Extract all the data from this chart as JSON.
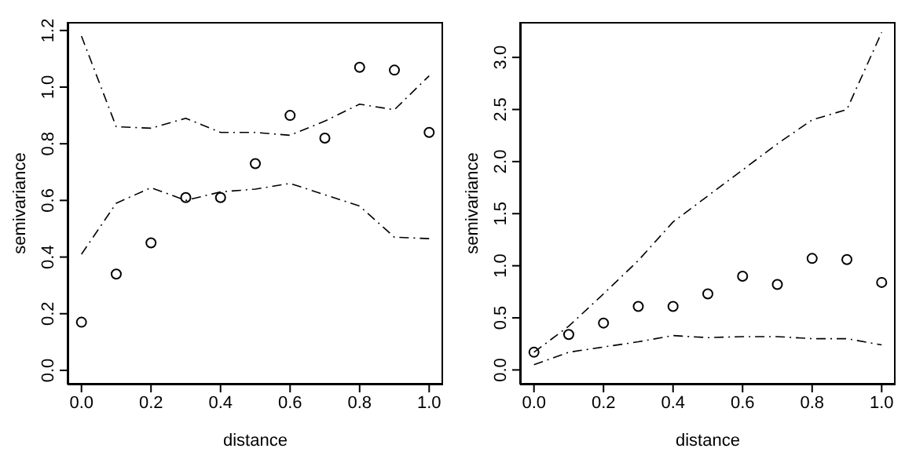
{
  "chart_data": [
    {
      "type": "scatter",
      "xlabel": "distance",
      "ylabel": "semivariance",
      "x": [
        0,
        0.1,
        0.2,
        0.3,
        0.4,
        0.5,
        0.6,
        0.7,
        0.8,
        0.9,
        1.0
      ],
      "xlim": [
        -0.04,
        1.04
      ],
      "xticks": [
        {
          "value": 0,
          "label": "0.0"
        },
        {
          "value": 0.2,
          "label": "0.2"
        },
        {
          "value": 0.4,
          "label": "0.4"
        },
        {
          "value": 0.6,
          "label": "0.6"
        },
        {
          "value": 0.8,
          "label": "0.8"
        },
        {
          "value": 1,
          "label": "1.0"
        }
      ],
      "ylim": [
        -0.05,
        1.23
      ],
      "yticks": [
        {
          "value": 0,
          "label": "0.0"
        },
        {
          "value": 0.2,
          "label": "0.2"
        },
        {
          "value": 0.4,
          "label": "0.4"
        },
        {
          "value": 0.6,
          "label": "0.6"
        },
        {
          "value": 0.8,
          "label": "0.8"
        },
        {
          "value": 1,
          "label": "1.0"
        },
        {
          "value": 1.2,
          "label": "1.2"
        }
      ],
      "grid": false,
      "series": [
        {
          "type": "scatter",
          "marker": "circle",
          "color": "#000000",
          "values": [
            0.17,
            0.34,
            0.45,
            0.61,
            0.61,
            0.73,
            0.9,
            0.82,
            1.07,
            1.06,
            0.84
          ]
        },
        {
          "type": "line",
          "line_style": "dashed",
          "marker": "none",
          "color": "#000000",
          "values": [
            1.18,
            0.86,
            0.855,
            0.89,
            0.84,
            0.84,
            0.83,
            0.88,
            0.94,
            0.92,
            1.04
          ]
        },
        {
          "type": "line",
          "line_style": "dashed",
          "marker": "none",
          "color": "#000000",
          "values": [
            0.41,
            0.59,
            0.645,
            0.6,
            0.63,
            0.64,
            0.66,
            0.62,
            0.58,
            0.47,
            0.465
          ]
        }
      ]
    },
    {
      "type": "scatter",
      "xlabel": "distance",
      "ylabel": "semivariance",
      "x": [
        0,
        0.1,
        0.2,
        0.3,
        0.4,
        0.5,
        0.6,
        0.7,
        0.8,
        0.9,
        1.0
      ],
      "xlim": [
        -0.04,
        1.04
      ],
      "xticks": [
        {
          "value": 0,
          "label": "0.0"
        },
        {
          "value": 0.2,
          "label": "0.2"
        },
        {
          "value": 0.4,
          "label": "0.4"
        },
        {
          "value": 0.6,
          "label": "0.6"
        },
        {
          "value": 0.8,
          "label": "0.8"
        },
        {
          "value": 1,
          "label": "1.0"
        }
      ],
      "ylim": [
        -0.14,
        3.34
      ],
      "yticks": [
        {
          "value": 0,
          "label": "0.0"
        },
        {
          "value": 0.5,
          "label": "0.5"
        },
        {
          "value": 1,
          "label": "1.0"
        },
        {
          "value": 1.5,
          "label": "1.5"
        },
        {
          "value": 2,
          "label": "2.0"
        },
        {
          "value": 2.5,
          "label": "2.5"
        },
        {
          "value": 3,
          "label": "3.0"
        }
      ],
      "grid": false,
      "series": [
        {
          "type": "scatter",
          "marker": "circle",
          "color": "#000000",
          "values": [
            0.17,
            0.34,
            0.45,
            0.61,
            0.61,
            0.73,
            0.9,
            0.82,
            1.07,
            1.06,
            0.84
          ]
        },
        {
          "type": "line",
          "line_style": "dashed",
          "marker": "none",
          "color": "#000000",
          "values": [
            0.17,
            0.42,
            0.73,
            1.05,
            1.42,
            1.67,
            1.92,
            2.17,
            2.4,
            2.5,
            3.24
          ]
        },
        {
          "type": "line",
          "line_style": "dashed",
          "marker": "none",
          "color": "#000000",
          "values": [
            0.05,
            0.17,
            0.22,
            0.27,
            0.33,
            0.31,
            0.32,
            0.32,
            0.3,
            0.3,
            0.24
          ]
        }
      ]
    }
  ]
}
